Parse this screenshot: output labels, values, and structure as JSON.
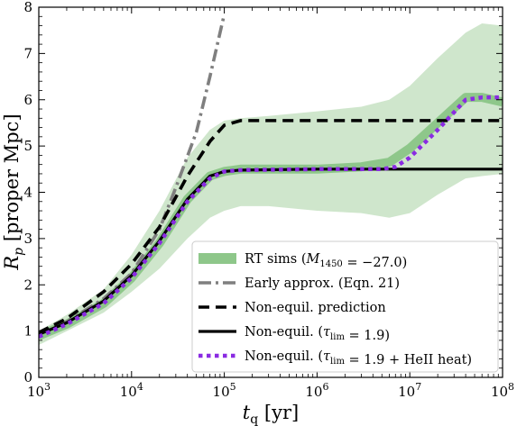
{
  "chart_data": {
    "type": "line",
    "xlabel": "t_q [yr]",
    "ylabel": "R_p [proper Mpc]",
    "xscale": "log",
    "xlim": [
      1000,
      100000000
    ],
    "ylim": [
      0,
      8
    ],
    "x_tick_labels": [
      "10^3",
      "10^4",
      "10^5",
      "10^6",
      "10^7",
      "10^8"
    ],
    "y_tick_labels": [
      "0",
      "1",
      "2",
      "3",
      "4",
      "5",
      "6",
      "7",
      "8"
    ],
    "legend_location": "lower right",
    "colors": {
      "band_outer": "#cfe6cc",
      "band_inner": "#8ec78a",
      "early": "#7f7f7f",
      "nonequil": "#000000",
      "heii": "#8a2be2"
    },
    "legend": [
      {
        "label": "RT sims (M_1450 = −27.0)",
        "style": "band"
      },
      {
        "label": "Early approx. (Eqn. 21)",
        "style": "dashdot"
      },
      {
        "label": "Non-equil. prediction",
        "style": "dashed"
      },
      {
        "label": "Non-equil. (τ_lim = 1.9)",
        "style": "solid"
      },
      {
        "label": "Non-equil. (τ_lim = 1.9 + HeII heat)",
        "style": "dotted"
      }
    ],
    "x": [
      1000,
      2000,
      5000,
      10000,
      20000,
      40000,
      70000,
      100000,
      150000,
      300000,
      1000000,
      3000000,
      6000000,
      10000000,
      20000000,
      40000000,
      60000000,
      100000000
    ],
    "series": [
      {
        "name": "RT sims (M_1450 = −27.0) range",
        "kind": "band",
        "lower": [
          0.7,
          1.0,
          1.4,
          1.85,
          2.35,
          3.0,
          3.45,
          3.6,
          3.7,
          3.7,
          3.6,
          3.55,
          3.45,
          3.55,
          3.95,
          4.3,
          4.35,
          4.4
        ],
        "upper": [
          1.0,
          1.35,
          1.9,
          2.65,
          3.6,
          4.75,
          5.35,
          5.55,
          5.6,
          5.65,
          5.75,
          5.85,
          6.0,
          6.3,
          6.9,
          7.45,
          7.65,
          7.6
        ]
      },
      {
        "name": "RT sims (M_1450 = −27.0) median",
        "kind": "band_median",
        "values": [
          0.9,
          1.15,
          1.6,
          2.15,
          2.9,
          3.85,
          4.35,
          4.45,
          4.5,
          4.5,
          4.5,
          4.55,
          4.65,
          4.95,
          5.5,
          6.05,
          6.05,
          5.95
        ]
      },
      {
        "name": "Early approx. (Eqn. 21)",
        "kind": "dashdot",
        "x": [
          1000,
          2000,
          5000,
          10000,
          20000,
          30000,
          50000,
          70000,
          100000
        ],
        "values": [
          0.93,
          1.2,
          1.7,
          2.25,
          3.2,
          4.1,
          5.3,
          6.5,
          7.85
        ]
      },
      {
        "name": "Non-equil. prediction",
        "kind": "dashed",
        "x": [
          1000,
          2000,
          5000,
          10000,
          20000,
          40000,
          70000,
          100000,
          150000,
          1000000,
          10000000,
          100000000
        ],
        "values": [
          0.97,
          1.27,
          1.85,
          2.45,
          3.25,
          4.35,
          5.1,
          5.45,
          5.55,
          5.55,
          5.55,
          5.55
        ]
      },
      {
        "name": "Non-equil. (τ_lim = 1.9)",
        "kind": "solid",
        "x": [
          1000,
          2000,
          5000,
          10000,
          20000,
          40000,
          70000,
          100000,
          150000,
          1000000,
          10000000,
          100000000
        ],
        "values": [
          0.93,
          1.18,
          1.65,
          2.2,
          2.95,
          3.85,
          4.35,
          4.45,
          4.48,
          4.5,
          4.5,
          4.5
        ]
      },
      {
        "name": "Non-equil. (τ_lim = 1.9 + HeII heat)",
        "kind": "dotted",
        "x": [
          1000,
          2000,
          5000,
          10000,
          20000,
          40000,
          70000,
          100000,
          150000,
          1000000,
          5000000,
          7000000,
          10000000,
          20000000,
          40000000,
          60000000,
          100000000
        ],
        "values": [
          0.88,
          1.15,
          1.6,
          2.15,
          2.9,
          3.8,
          4.3,
          4.45,
          4.48,
          4.5,
          4.5,
          4.55,
          4.75,
          5.35,
          6.0,
          6.05,
          6.05
        ]
      }
    ]
  }
}
